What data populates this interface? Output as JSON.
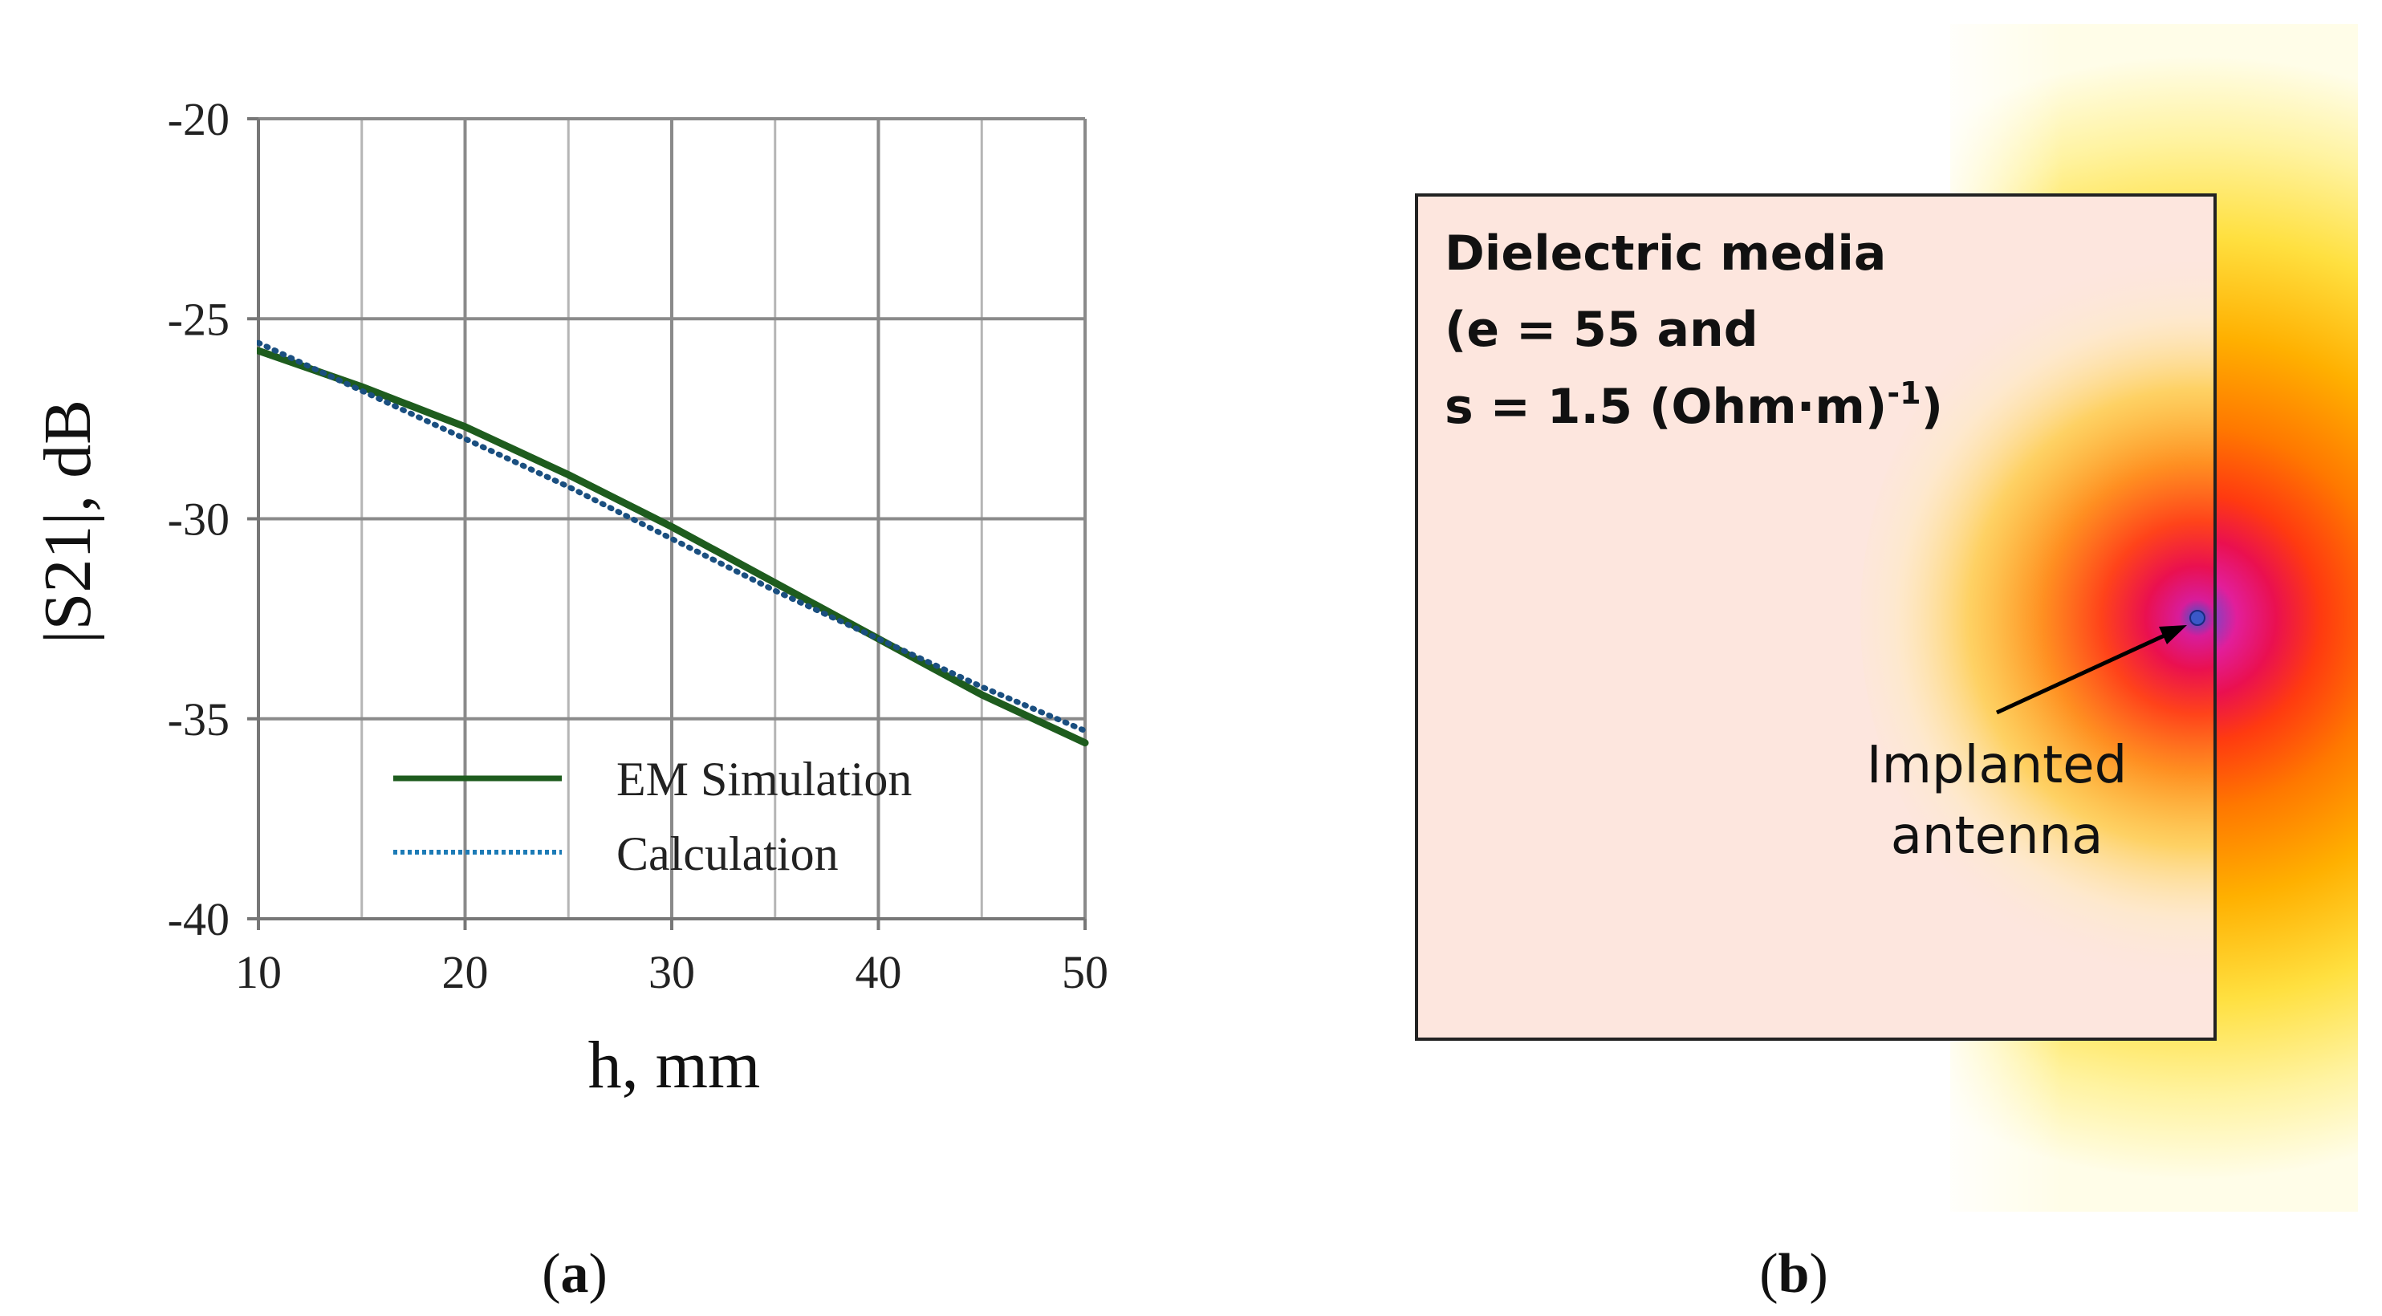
{
  "panel_a": {
    "label_open": "(",
    "label_letter": "a",
    "label_close": ")",
    "chart_data": {
      "type": "line",
      "xlabel": "h, mm",
      "ylabel": "|S21|, dB",
      "xlim": [
        10,
        50
      ],
      "ylim": [
        -40,
        -20
      ],
      "xticks": [
        10,
        20,
        30,
        40,
        50
      ],
      "xtick_labels": [
        "10",
        "20",
        "30",
        "40",
        "50"
      ],
      "yticks": [
        -20,
        -25,
        -30,
        -35,
        -40
      ],
      "ytick_labels": [
        "-20",
        "-25",
        "-30",
        "-35",
        "-40"
      ],
      "grid": true,
      "legend_position": "bottom-center",
      "series": [
        {
          "name": "EM Simulation",
          "style": "solid",
          "color": "#1e5c1e",
          "x": [
            10,
            15,
            20,
            25,
            30,
            35,
            40,
            45,
            50
          ],
          "y": [
            -25.8,
            -26.7,
            -27.7,
            -28.9,
            -30.2,
            -31.6,
            -33.0,
            -34.4,
            -35.6
          ]
        },
        {
          "name": "Calculation",
          "style": "dotted",
          "color": "#1c7bb6",
          "x": [
            10,
            15,
            20,
            25,
            30,
            35,
            40,
            45,
            50
          ],
          "y": [
            -25.6,
            -26.8,
            -28.0,
            -29.2,
            -30.5,
            -31.8,
            -33.0,
            -34.2,
            -35.3
          ]
        }
      ]
    }
  },
  "panel_b": {
    "label_open": "(",
    "label_letter": "b",
    "label_close": ")",
    "media_lines": [
      "Dielectric media",
      "(e = 55 and",
      "s = 1.5 (Ohm·m)",
      "-1",
      ")"
    ],
    "antenna_lines": [
      "Implanted",
      "antenna"
    ],
    "colors": {
      "media_fill": "#fde6de",
      "field_hot": "#e8104a",
      "field_mid": "#ff6a00",
      "field_warm": "#ffd000",
      "field_cool": "#fff6b0",
      "antenna_dot": "#3a58c8"
    }
  }
}
